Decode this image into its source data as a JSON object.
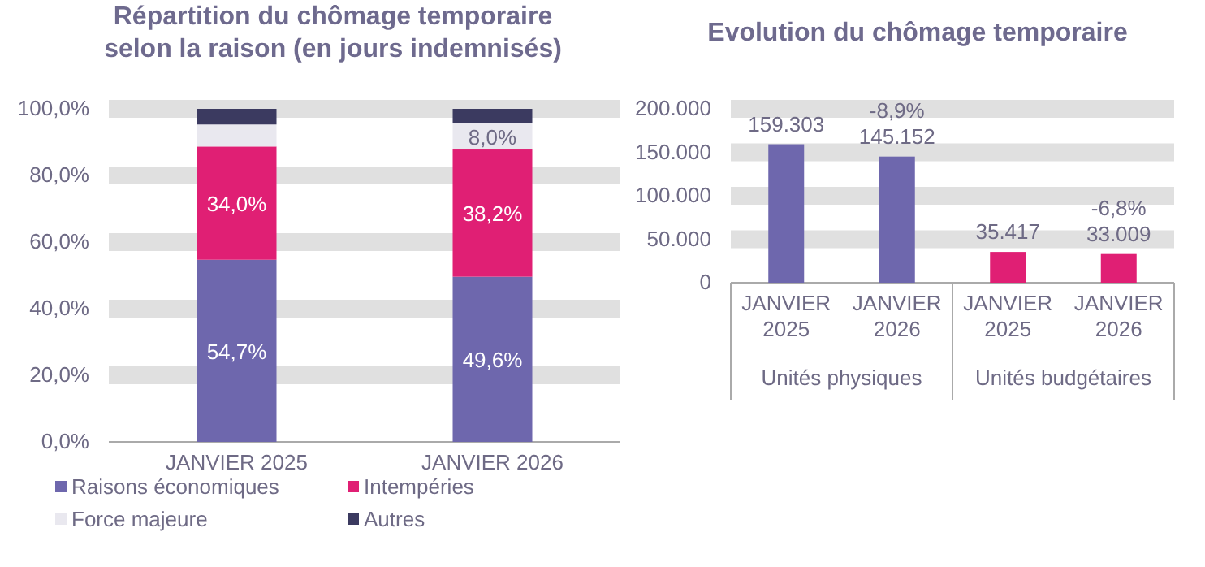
{
  "chart_data": [
    {
      "type": "bar",
      "title": "Répartition du chômage temporaire\nselon la raison (en jours indemnisés)",
      "stacked": true,
      "categories": [
        "JANVIER 2025",
        "JANVIER 2026"
      ],
      "series": [
        {
          "name": "Raisons économiques",
          "color": "#6e67ad",
          "values": [
            54.7,
            49.6
          ],
          "value_labels": [
            "54,7%",
            "49,6%"
          ]
        },
        {
          "name": "Intempéries",
          "color": "#e01f74",
          "values": [
            34.0,
            38.2
          ],
          "value_labels": [
            "34,0%",
            "38,2%"
          ]
        },
        {
          "name": "Force majeure",
          "color": "#e9e8ef",
          "values": [
            6.6,
            8.0
          ],
          "value_labels": [
            null,
            "8,0%"
          ]
        },
        {
          "name": "Autres",
          "color": "#3b3a60",
          "values": [
            4.7,
            4.2
          ],
          "value_labels": [
            null,
            null
          ]
        }
      ],
      "ylim": [
        0,
        100
      ],
      "yticks": [
        {
          "value": 0,
          "label": "0,0%"
        },
        {
          "value": 20,
          "label": "20,0%"
        },
        {
          "value": 40,
          "label": "40,0%"
        },
        {
          "value": 60,
          "label": "60,0%"
        },
        {
          "value": 80,
          "label": "80,0%"
        },
        {
          "value": 100,
          "label": "100,0%"
        }
      ],
      "grid": true,
      "legend": "bottom"
    },
    {
      "type": "bar",
      "title": "Evolution du chômage temporaire",
      "categories": [
        "JANVIER 2025",
        "JANVIER 2026",
        "JANVIER 2025",
        "JANVIER 2026"
      ],
      "values": [
        159303,
        145152,
        35417,
        33009
      ],
      "colors": [
        "#6e67ad",
        "#6e67ad",
        "#e01f74",
        "#e01f74"
      ],
      "value_labels": [
        "159.303",
        "145.152",
        "35.417",
        "33.009"
      ],
      "ylim": [
        0,
        200000
      ],
      "yticks": [
        {
          "value": 0,
          "label": "0"
        },
        {
          "value": 50000,
          "label": "50.000"
        },
        {
          "value": 100000,
          "label": "100.000"
        },
        {
          "value": 150000,
          "label": "150.000"
        },
        {
          "value": 200000,
          "label": "200.000"
        }
      ],
      "grid": true,
      "legend": false,
      "annotations": [
        "-8,9%",
        "-6,8%",
        "Unités physiques",
        "Unités budgétaires"
      ]
    }
  ]
}
